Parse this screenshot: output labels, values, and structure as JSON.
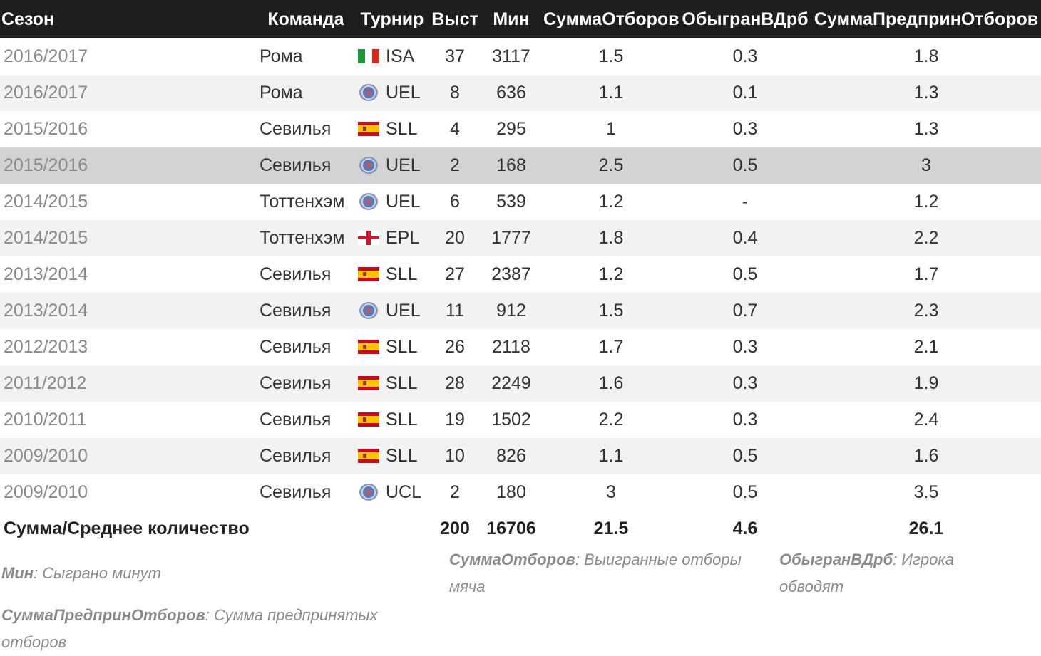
{
  "headers": [
    "Сезон",
    "Команда",
    "Турнир",
    "Выст",
    "Мин",
    "СуммаОтборов",
    "ОбыгранВДрб",
    "СуммаПредпринОтборов"
  ],
  "rows": [
    {
      "season": "2016/2017",
      "team": "Рома",
      "flag": "italy-flag-icon",
      "tournament": "ISA",
      "apps": "37",
      "mins": "3117",
      "tackles": "1.5",
      "dribbled": "0.3",
      "total_tackles": "1.8"
    },
    {
      "season": "2016/2017",
      "team": "Рома",
      "flag": "uefa-logo-icon",
      "tournament": "UEL",
      "apps": "8",
      "mins": "636",
      "tackles": "1.1",
      "dribbled": "0.1",
      "total_tackles": "1.3"
    },
    {
      "season": "2015/2016",
      "team": "Севилья",
      "flag": "spain-flag-icon",
      "tournament": "SLL",
      "apps": "4",
      "mins": "295",
      "tackles": "1",
      "dribbled": "0.3",
      "total_tackles": "1.3"
    },
    {
      "season": "2015/2016",
      "team": "Севилья",
      "flag": "uefa-logo-icon",
      "tournament": "UEL",
      "apps": "2",
      "mins": "168",
      "tackles": "2.5",
      "dribbled": "0.5",
      "total_tackles": "3"
    },
    {
      "season": "2014/2015",
      "team": "Тоттенхэм",
      "flag": "uefa-logo-icon",
      "tournament": "UEL",
      "apps": "6",
      "mins": "539",
      "tackles": "1.2",
      "dribbled": "-",
      "total_tackles": "1.2"
    },
    {
      "season": "2014/2015",
      "team": "Тоттенхэм",
      "flag": "england-flag-icon",
      "tournament": "EPL",
      "apps": "20",
      "mins": "1777",
      "tackles": "1.8",
      "dribbled": "0.4",
      "total_tackles": "2.2"
    },
    {
      "season": "2013/2014",
      "team": "Севилья",
      "flag": "spain-flag-icon",
      "tournament": "SLL",
      "apps": "27",
      "mins": "2387",
      "tackles": "1.2",
      "dribbled": "0.5",
      "total_tackles": "1.7"
    },
    {
      "season": "2013/2014",
      "team": "Севилья",
      "flag": "uefa-logo-icon",
      "tournament": "UEL",
      "apps": "11",
      "mins": "912",
      "tackles": "1.5",
      "dribbled": "0.7",
      "total_tackles": "2.3"
    },
    {
      "season": "2012/2013",
      "team": "Севилья",
      "flag": "spain-flag-icon",
      "tournament": "SLL",
      "apps": "26",
      "mins": "2118",
      "tackles": "1.7",
      "dribbled": "0.3",
      "total_tackles": "2.1"
    },
    {
      "season": "2011/2012",
      "team": "Севилья",
      "flag": "spain-flag-icon",
      "tournament": "SLL",
      "apps": "28",
      "mins": "2249",
      "tackles": "1.6",
      "dribbled": "0.3",
      "total_tackles": "1.9"
    },
    {
      "season": "2010/2011",
      "team": "Севилья",
      "flag": "spain-flag-icon",
      "tournament": "SLL",
      "apps": "19",
      "mins": "1502",
      "tackles": "2.2",
      "dribbled": "0.3",
      "total_tackles": "2.4"
    },
    {
      "season": "2009/2010",
      "team": "Севилья",
      "flag": "spain-flag-icon",
      "tournament": "SLL",
      "apps": "10",
      "mins": "826",
      "tackles": "1.1",
      "dribbled": "0.5",
      "total_tackles": "1.6"
    },
    {
      "season": "2009/2010",
      "team": "Севилья",
      "flag": "uefa-logo-icon",
      "tournament": "UCL",
      "apps": "2",
      "mins": "180",
      "tackles": "3",
      "dribbled": "0.5",
      "total_tackles": "3.5"
    }
  ],
  "highlighted_row": 3,
  "totals": {
    "label": "Сумма/Среднее количество",
    "apps": "200",
    "mins": "16706",
    "tackles": "21.5",
    "dribbled": "4.6",
    "total_tackles": "26.1"
  },
  "legend": {
    "mins": {
      "term": "Мин",
      "desc": ": Сыграно минут"
    },
    "tackles": {
      "term": "СуммаОтборов",
      "desc_1": ": Выигранные отборы",
      "desc_2": "мяча"
    },
    "dribbled": {
      "term": "ОбыгранВДрб",
      "desc_1": ": Игрока",
      "desc_2": "обводят"
    },
    "total_tackles": {
      "term": "СуммаПредпринОтборов",
      "desc_1": ": Сумма предпринятых",
      "desc_2": "отборов"
    }
  }
}
